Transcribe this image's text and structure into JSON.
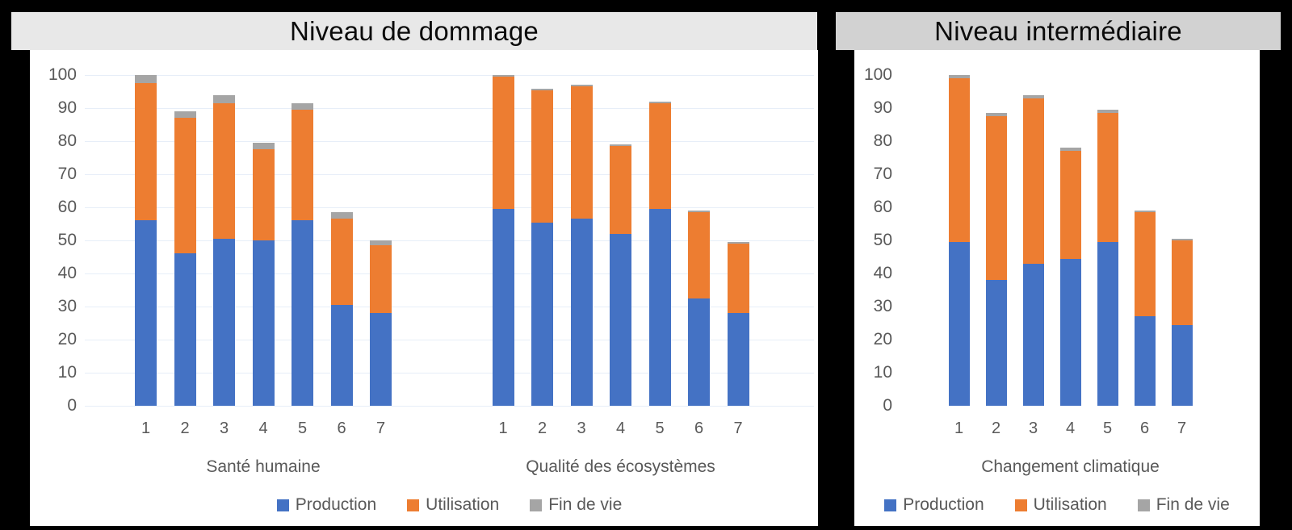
{
  "colors": {
    "Production": "#4472C4",
    "Utilisation": "#ED7D31",
    "Fin de vie": "#A5A5A5"
  },
  "style": {
    "left_header_bg": "#E8E8E8",
    "right_header_bg": "#D2D2D2",
    "grid_color": "#E7EEF8",
    "axis_text_color": "#595959",
    "title_color": "#0B0B0B",
    "panel_bg": "#FFFFFF",
    "frame_bg": "#000000"
  },
  "chart_data": [
    {
      "type": "bar",
      "stacked": true,
      "title": "Niveau de dommage",
      "ylim": [
        0,
        100
      ],
      "ytick_step": 10,
      "ytick_labels": [
        "0",
        "10",
        "20",
        "30",
        "40",
        "50",
        "60",
        "70",
        "80",
        "90",
        "100"
      ],
      "grid": true,
      "legend_position": "bottom",
      "series_names": [
        "Production",
        "Utilisation",
        "Fin de vie"
      ],
      "groups": [
        {
          "label": "Santé humaine",
          "categories": [
            "1",
            "2",
            "3",
            "4",
            "5",
            "6",
            "7"
          ],
          "series": [
            {
              "name": "Production",
              "values": [
                56,
                46,
                50.5,
                50,
                56,
                30.5,
                28
              ]
            },
            {
              "name": "Utilisation",
              "values": [
                41.5,
                41,
                41,
                27.5,
                33.5,
                26,
                20.5
              ]
            },
            {
              "name": "Fin de vie",
              "values": [
                2.5,
                2,
                2.5,
                2,
                2,
                2,
                1.5
              ]
            }
          ]
        },
        {
          "label": "Qualité des écosystèmes",
          "categories": [
            "1",
            "2",
            "3",
            "4",
            "5",
            "6",
            "7"
          ],
          "series": [
            {
              "name": "Production",
              "values": [
                59.5,
                55.5,
                56.5,
                52,
                59.5,
                32.5,
                28
              ]
            },
            {
              "name": "Utilisation",
              "values": [
                40,
                40,
                40,
                26.5,
                32,
                26,
                21
              ]
            },
            {
              "name": "Fin de vie",
              "values": [
                0.5,
                0.5,
                0.5,
                0.5,
                0.5,
                0.5,
                0.5
              ]
            }
          ]
        }
      ]
    },
    {
      "type": "bar",
      "stacked": true,
      "title": "Niveau intermédiaire",
      "ylim": [
        0,
        100
      ],
      "ytick_step": 10,
      "ytick_labels": [
        "0",
        "10",
        "20",
        "30",
        "40",
        "50",
        "60",
        "70",
        "80",
        "90",
        "100"
      ],
      "grid": false,
      "legend_position": "bottom",
      "series_names": [
        "Production",
        "Utilisation",
        "Fin de vie"
      ],
      "groups": [
        {
          "label": "Changement climatique",
          "categories": [
            "1",
            "2",
            "3",
            "4",
            "5",
            "6",
            "7"
          ],
          "series": [
            {
              "name": "Production",
              "values": [
                49.5,
                38,
                43,
                44.5,
                49.5,
                27,
                24.5
              ]
            },
            {
              "name": "Utilisation",
              "values": [
                49.5,
                49.5,
                50,
                32.5,
                39,
                31.5,
                25.5
              ]
            },
            {
              "name": "Fin de vie",
              "values": [
                1,
                1,
                1,
                1,
                1,
                0.5,
                0.5
              ]
            }
          ]
        }
      ]
    }
  ]
}
